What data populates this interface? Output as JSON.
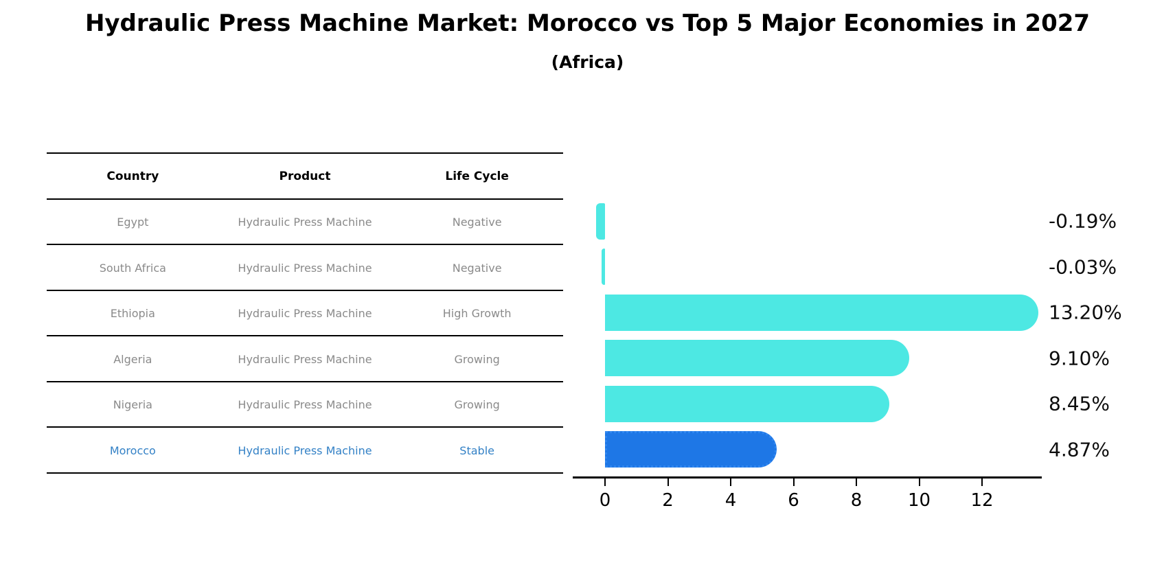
{
  "title": "Hydraulic Press Machine Market: Morocco vs Top 5 Major Economies in 2027",
  "subtitle": "(Africa)",
  "table": {
    "headers": [
      "Country",
      "Product",
      "Life Cycle"
    ],
    "rows": [
      {
        "country": "Egypt",
        "product": "Hydraulic Press Machine",
        "life_cycle": "Negative",
        "highlight": false
      },
      {
        "country": "South Africa",
        "product": "Hydraulic Press Machine",
        "life_cycle": "Negative",
        "highlight": false
      },
      {
        "country": "Ethiopia",
        "product": "Hydraulic Press Machine",
        "life_cycle": "High Growth",
        "highlight": false
      },
      {
        "country": "Algeria",
        "product": "Hydraulic Press Machine",
        "life_cycle": "Growing",
        "highlight": false
      },
      {
        "country": "Nigeria",
        "product": "Hydraulic Press Machine",
        "life_cycle": "Growing",
        "highlight": false
      },
      {
        "country": "Morocco",
        "product": "Hydraulic Press Machine",
        "life_cycle": "Stable",
        "highlight": true
      }
    ]
  },
  "chart_data": {
    "type": "bar",
    "orientation": "horizontal",
    "title": "Hydraulic Press Machine Market: Morocco vs Top 5 Major Economies in 2027 (Africa)",
    "categories": [
      "Egypt",
      "South Africa",
      "Ethiopia",
      "Algeria",
      "Nigeria",
      "Morocco"
    ],
    "values": [
      -0.19,
      -0.03,
      13.2,
      9.1,
      8.45,
      4.87
    ],
    "value_labels": [
      "-0.19%",
      "-0.03%",
      "13.20%",
      "9.10%",
      "8.45%",
      "4.87%"
    ],
    "highlight_index": 5,
    "x_ticks": [
      0,
      2,
      4,
      6,
      8,
      10,
      12
    ],
    "xlim": [
      -1.05,
      13.9
    ],
    "grid": false,
    "legend": false,
    "xlabel": "",
    "ylabel": ""
  },
  "colors": {
    "bar": "#4de8e3",
    "highlight_bar": "#1e77e6",
    "highlight_bar_edge": "#2f86f0",
    "header_text": "#000000",
    "row_text": "#8a8a8a",
    "highlight_text": "#3381c6",
    "axis": "#000000",
    "background": "#ffffff"
  }
}
